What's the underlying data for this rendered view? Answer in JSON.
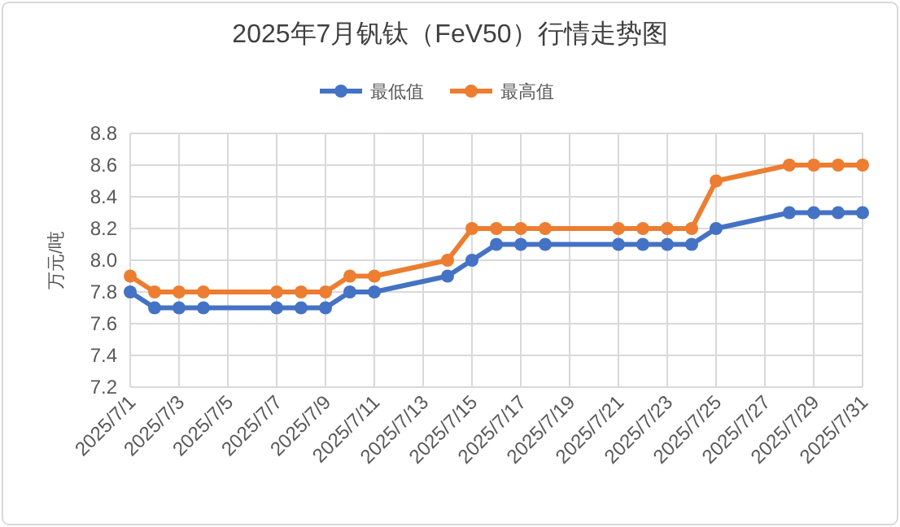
{
  "chart_data": {
    "type": "line",
    "title": "2025年7月钒钛（FeV50）行情走势图",
    "ylabel": "万元/吨",
    "x": [
      "2025-07-01",
      "2025-07-02",
      "2025-07-03",
      "2025-07-04",
      "2025-07-07",
      "2025-07-08",
      "2025-07-09",
      "2025-07-10",
      "2025-07-11",
      "2025-07-14",
      "2025-07-15",
      "2025-07-16",
      "2025-07-17",
      "2025-07-18",
      "2025-07-21",
      "2025-07-22",
      "2025-07-23",
      "2025-07-24",
      "2025-07-25",
      "2025-07-28",
      "2025-07-29",
      "2025-07-30",
      "2025-07-31"
    ],
    "series": [
      {
        "name": "最低值",
        "color": "#4472c4",
        "values": [
          7.8,
          7.7,
          7.7,
          7.7,
          7.7,
          7.7,
          7.7,
          7.8,
          7.8,
          7.9,
          8.0,
          8.1,
          8.1,
          8.1,
          8.1,
          8.1,
          8.1,
          8.1,
          8.2,
          8.3,
          8.3,
          8.3,
          8.3
        ]
      },
      {
        "name": "最高值",
        "color": "#ed7d31",
        "values": [
          7.9,
          7.8,
          7.8,
          7.8,
          7.8,
          7.8,
          7.8,
          7.9,
          7.9,
          8.0,
          8.2,
          8.2,
          8.2,
          8.2,
          8.2,
          8.2,
          8.2,
          8.2,
          8.5,
          8.6,
          8.6,
          8.6,
          8.6
        ]
      }
    ],
    "xlim": [
      "2025-07-01",
      "2025-07-31"
    ],
    "xticks": [
      {
        "value": "2025-07-01",
        "label": "2025/7/1"
      },
      {
        "value": "2025-07-03",
        "label": "2025/7/3"
      },
      {
        "value": "2025-07-05",
        "label": "2025/7/5"
      },
      {
        "value": "2025-07-07",
        "label": "2025/7/7"
      },
      {
        "value": "2025-07-09",
        "label": "2025/7/9"
      },
      {
        "value": "2025-07-11",
        "label": "2025/7/11"
      },
      {
        "value": "2025-07-13",
        "label": "2025/7/13"
      },
      {
        "value": "2025-07-15",
        "label": "2025/7/15"
      },
      {
        "value": "2025-07-17",
        "label": "2025/7/17"
      },
      {
        "value": "2025-07-19",
        "label": "2025/7/19"
      },
      {
        "value": "2025-07-21",
        "label": "2025/7/21"
      },
      {
        "value": "2025-07-23",
        "label": "2025/7/23"
      },
      {
        "value": "2025-07-25",
        "label": "2025/7/25"
      },
      {
        "value": "2025-07-27",
        "label": "2025/7/27"
      },
      {
        "value": "2025-07-29",
        "label": "2025/7/29"
      },
      {
        "value": "2025-07-31",
        "label": "2025/7/31"
      }
    ],
    "ylim": [
      7.2,
      8.8
    ],
    "yticks": [
      {
        "value": 7.2,
        "label": "7.2"
      },
      {
        "value": 7.4,
        "label": "7.4"
      },
      {
        "value": 7.6,
        "label": "7.6"
      },
      {
        "value": 7.8,
        "label": "7.8"
      },
      {
        "value": 8.0,
        "label": "8.0"
      },
      {
        "value": 8.2,
        "label": "8.2"
      },
      {
        "value": 8.4,
        "label": "8.4"
      },
      {
        "value": 8.6,
        "label": "8.6"
      },
      {
        "value": 8.8,
        "label": "8.8"
      }
    ],
    "grid": true,
    "legend": "top",
    "marker": "circle",
    "line_style": "solid"
  }
}
